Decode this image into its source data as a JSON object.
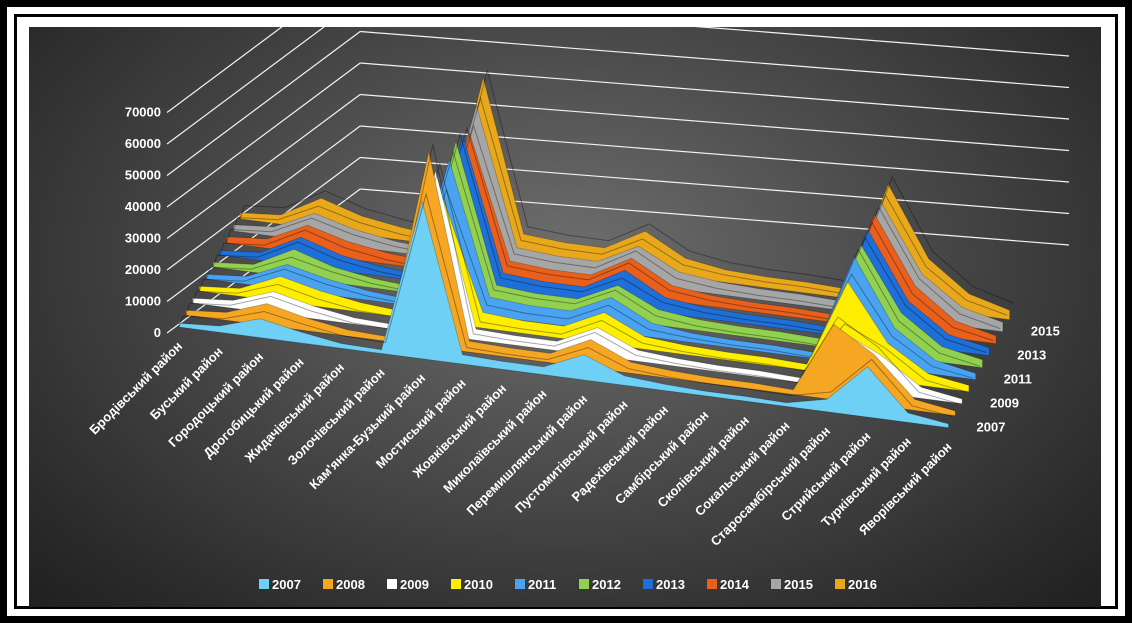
{
  "chart_data": {
    "type": "area",
    "title": "",
    "xlabel": "",
    "ylabel": "",
    "ylim": [
      0,
      70000
    ],
    "yticks": [
      0,
      10000,
      20000,
      30000,
      40000,
      50000,
      60000,
      70000
    ],
    "ytick_labels": [
      "0",
      "10000",
      "20000",
      "30000",
      "40000",
      "50000",
      "60000",
      "70000"
    ],
    "categories": [
      "Бродівський район",
      "Буський район",
      "Городоцький район",
      "Дрогобицький район",
      "Жидачівський район",
      "Золочівський район",
      "Кам'янка-Бузький район",
      "Мостиський район",
      "Жовківський район",
      "Миколаївський район",
      "Перемишлянський район",
      "Пустомитівський район",
      "Радехівський район",
      "Самбірський район",
      "Сколівський район",
      "Сокальський район",
      "Старосамбірський район",
      "Стрийський район",
      "Турківський район",
      "Яворівський район"
    ],
    "depth_axis_labels": [
      "2007",
      "2009",
      "2011",
      "2013",
      "2015"
    ],
    "legend_position": "bottom",
    "grid": true,
    "series": [
      {
        "name": "2007",
        "color": "#6fd0f6",
        "values": [
          1200,
          2000,
          6000,
          3500,
          1500,
          1200,
          50000,
          3000,
          2500,
          2500,
          8000,
          3000,
          2000,
          1500,
          1500,
          1200,
          4000,
          16000,
          3000,
          1200
        ]
      },
      {
        "name": "2008",
        "color": "#f5a623",
        "values": [
          1500,
          2500,
          7000,
          4000,
          2000,
          1500,
          62000,
          3500,
          3000,
          3000,
          9000,
          3500,
          2500,
          2000,
          2000,
          1500,
          24000,
          16000,
          3500,
          1500
        ]
      },
      {
        "name": "2009",
        "color": "#ffffff",
        "values": [
          1500,
          2500,
          7000,
          4000,
          2000,
          1500,
          52000,
          3500,
          3000,
          3000,
          9000,
          3500,
          2500,
          2000,
          2000,
          1500,
          18000,
          12000,
          3500,
          1500
        ]
      },
      {
        "name": "2010",
        "color": "#ffee00",
        "values": [
          1500,
          2500,
          8000,
          5000,
          3000,
          2000,
          40000,
          5000,
          4000,
          4000,
          10000,
          4000,
          3000,
          2500,
          2500,
          2000,
          30000,
          12000,
          4000,
          2000
        ]
      },
      {
        "name": "2011",
        "color": "#4aa3f0",
        "values": [
          1500,
          2500,
          8000,
          5000,
          3000,
          2000,
          48000,
          6000,
          5000,
          5000,
          11000,
          4500,
          3000,
          2500,
          2500,
          2000,
          34000,
          13000,
          4500,
          2000
        ]
      },
      {
        "name": "2012",
        "color": "#92d050",
        "values": [
          1500,
          2500,
          9000,
          5000,
          3000,
          2000,
          50000,
          6000,
          5000,
          5000,
          11000,
          5000,
          3500,
          3000,
          3000,
          2500,
          34000,
          14000,
          5000,
          2500
        ]
      },
      {
        "name": "2013",
        "color": "#1e6fd8",
        "values": [
          1500,
          2500,
          9000,
          5000,
          3000,
          2000,
          48000,
          6000,
          5000,
          5000,
          12000,
          5000,
          3500,
          3000,
          3000,
          2500,
          35000,
          14000,
          5000,
          2500
        ]
      },
      {
        "name": "2014",
        "color": "#e8601c",
        "values": [
          2000,
          3000,
          9000,
          5500,
          3500,
          2500,
          45000,
          6000,
          5000,
          5000,
          12000,
          5000,
          3500,
          3000,
          3000,
          2500,
          36000,
          15000,
          5500,
          2500
        ]
      },
      {
        "name": "2015",
        "color": "#a6a6a6",
        "values": [
          2000,
          3000,
          9000,
          5500,
          3500,
          2500,
          50000,
          6500,
          5500,
          5500,
          12000,
          5500,
          4000,
          3500,
          3500,
          3000,
          36000,
          15000,
          6000,
          3000
        ]
      },
      {
        "name": "2016",
        "color": "#e8a81c",
        "values": [
          2000,
          3000,
          10000,
          6000,
          4000,
          3000,
          55000,
          7000,
          6000,
          6000,
          13000,
          6000,
          4000,
          3500,
          3500,
          3000,
          38000,
          16000,
          6500,
          3000
        ]
      }
    ]
  }
}
